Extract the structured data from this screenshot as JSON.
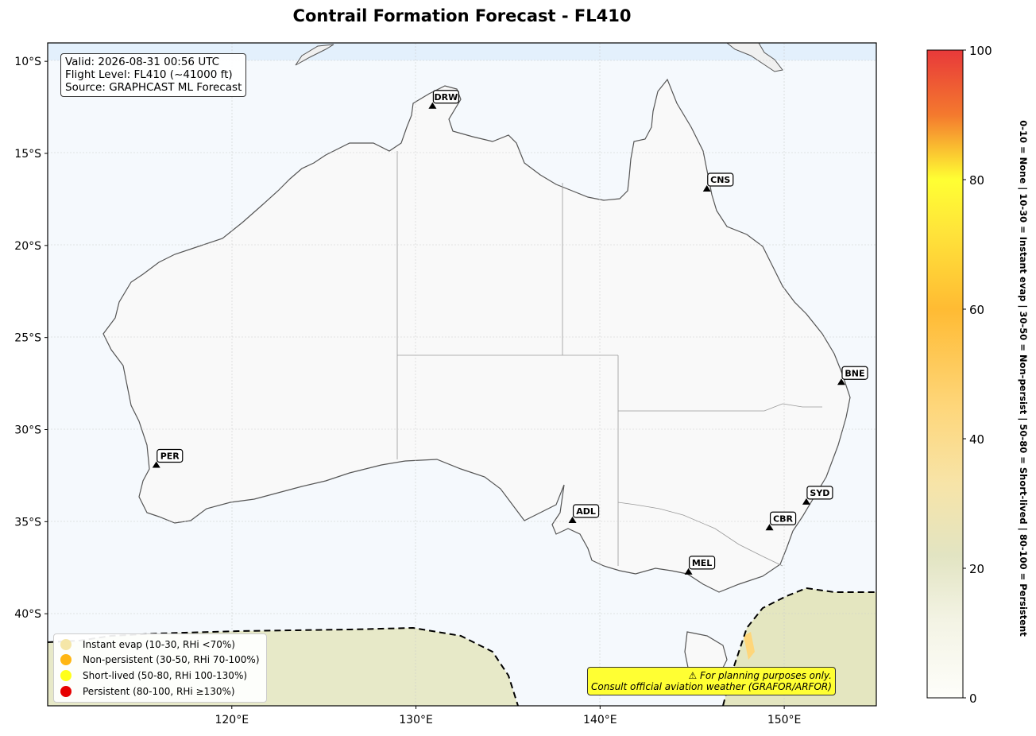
{
  "title": "Contrail Formation Forecast - FL410",
  "info": {
    "valid": "Valid: 2026-08-31 00:56 UTC",
    "flight_level": "Flight Level: FL410 (~41000 ft)",
    "source": "Source: GRAPHCAST ML Forecast"
  },
  "axes": {
    "lat_ticks": [
      "10°S",
      "15°S",
      "20°S",
      "25°S",
      "30°S",
      "35°S",
      "40°S"
    ],
    "lon_ticks": [
      "120°E",
      "130°E",
      "140°E",
      "150°E"
    ]
  },
  "airports": [
    {
      "code": "DRW",
      "lon": 130.9,
      "lat": -12.4
    },
    {
      "code": "CNS",
      "lon": 145.8,
      "lat": -16.9
    },
    {
      "code": "BNE",
      "lon": 153.1,
      "lat": -27.4
    },
    {
      "code": "PER",
      "lon": 115.9,
      "lat": -31.9
    },
    {
      "code": "ADL",
      "lon": 138.5,
      "lat": -34.9
    },
    {
      "code": "SYD",
      "lon": 151.2,
      "lat": -33.9
    },
    {
      "code": "CBR",
      "lon": 149.2,
      "lat": -35.3
    },
    {
      "code": "MEL",
      "lon": 144.8,
      "lat": -37.7
    }
  ],
  "legend": [
    {
      "label": "Instant evap (10-30, RHi <70%)",
      "color": "#f5e6a8"
    },
    {
      "label": "Non-persistent (30-50, RHi 70-100%)",
      "color": "#ffb612"
    },
    {
      "label": "Short-lived (50-80, RHi 100-130%)",
      "color": "#ffff1a"
    },
    {
      "label": "Persistent (80-100, RHi ≥130%)",
      "color": "#e60000"
    }
  ],
  "note": {
    "line1": "⚠ For planning purposes only.",
    "line2": "Consult official aviation weather (GRAFOR/ARFOR)"
  },
  "colorbar": {
    "ticks": [
      "0",
      "20",
      "40",
      "60",
      "80",
      "100"
    ],
    "label": "0-10 = None  |  10-30 = Instant evap  |  30-50 = Non-persist  |  50-80 = Short-lived  |  80-100 = Persistent"
  },
  "map_extent": {
    "lon": [
      110,
      155
    ],
    "lat": [
      -45,
      -9
    ]
  }
}
